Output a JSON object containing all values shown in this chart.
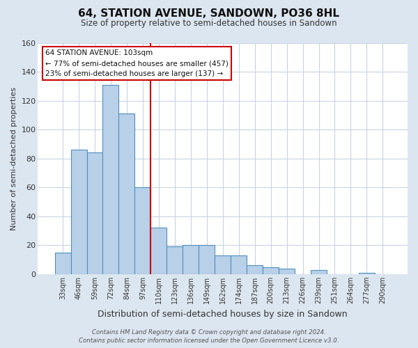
{
  "title": "64, STATION AVENUE, SANDOWN, PO36 8HL",
  "subtitle": "Size of property relative to semi-detached houses in Sandown",
  "xlabel": "Distribution of semi-detached houses by size in Sandown",
  "ylabel": "Number of semi-detached properties",
  "bar_labels": [
    "33sqm",
    "46sqm",
    "59sqm",
    "72sqm",
    "84sqm",
    "97sqm",
    "110sqm",
    "123sqm",
    "136sqm",
    "149sqm",
    "162sqm",
    "174sqm",
    "187sqm",
    "200sqm",
    "213sqm",
    "226sqm",
    "239sqm",
    "251sqm",
    "264sqm",
    "277sqm",
    "290sqm"
  ],
  "bar_values": [
    15,
    86,
    84,
    131,
    111,
    60,
    32,
    19,
    20,
    20,
    13,
    13,
    6,
    5,
    4,
    0,
    3,
    0,
    0,
    1,
    0
  ],
  "bar_color": "#b8d0e8",
  "bar_edge_color": "#4f8fbf",
  "highlight_index": 5,
  "highlight_line_color": "#cc0000",
  "annotation_title": "64 STATION AVENUE: 103sqm",
  "annotation_line1": "← 77% of semi-detached houses are smaller (457)",
  "annotation_line2": "23% of semi-detached houses are larger (137) →",
  "annotation_box_color": "#ffffff",
  "annotation_box_edge": "#cc0000",
  "ylim": [
    0,
    160
  ],
  "yticks": [
    0,
    20,
    40,
    60,
    80,
    100,
    120,
    140,
    160
  ],
  "plot_bg_color": "#ffffff",
  "outer_bg_color": "#dce6f0",
  "grid_color": "#c8d4e0",
  "footer_line1": "Contains HM Land Registry data © Crown copyright and database right 2024.",
  "footer_line2": "Contains public sector information licensed under the Open Government Licence v3.0."
}
